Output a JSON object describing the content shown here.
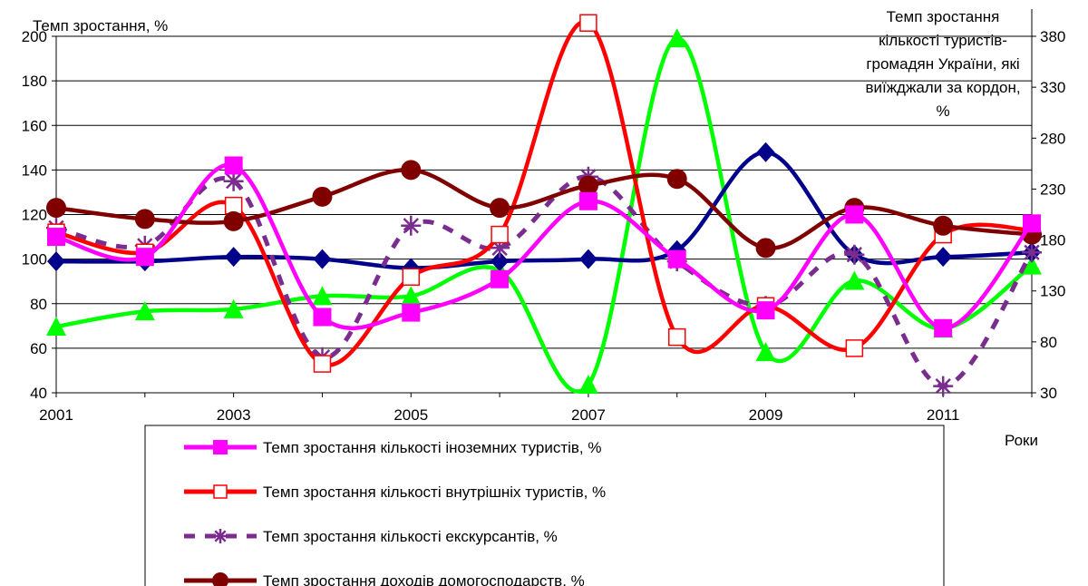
{
  "chart_data": {
    "type": "line",
    "y_label": "Темп зростання, %",
    "y2_label_lines": [
      "Темп зростання",
      "кількості туристів-",
      "громадян України, які",
      "виїжджали за кордон,",
      "%"
    ],
    "x_label": "Роки",
    "x": [
      2001,
      2002,
      2003,
      2004,
      2005,
      2006,
      2007,
      2008,
      2009,
      2010,
      2011,
      2012
    ],
    "x_tick_labels": [
      "2001",
      "2003",
      "2005",
      "2007",
      "2009",
      "2011"
    ],
    "x_tick_values": [
      2001,
      2003,
      2005,
      2007,
      2009,
      2011
    ],
    "y_ticks": [
      "40",
      "60",
      "80",
      "100",
      "120",
      "140",
      "160",
      "180",
      "200"
    ],
    "y_tick_values": [
      40,
      60,
      80,
      100,
      120,
      140,
      160,
      180,
      200
    ],
    "ylim": [
      40,
      200
    ],
    "y2_ticks": [
      "30",
      "80",
      "130",
      "180",
      "230",
      "280",
      "330",
      "380"
    ],
    "y2_tick_values": [
      30,
      80,
      130,
      180,
      230,
      280,
      330,
      380
    ],
    "y2lim": [
      30,
      380
    ],
    "grid": "horizontal",
    "legend_position": "bottom",
    "series": [
      {
        "name": "Темп зростання кількості іноземних туристів, %",
        "color": "#ff00ff",
        "marker": "square-filled",
        "dash": false,
        "axis": "left",
        "values": [
          110,
          101,
          142,
          74,
          76,
          91,
          126,
          100,
          77,
          120,
          69,
          116
        ]
      },
      {
        "name": "Темп зростання кількості внутрішніх туристів, %",
        "color": "#ff0000",
        "marker": "square-open",
        "dash": false,
        "axis": "left",
        "values": [
          112,
          103,
          124,
          53,
          92,
          111,
          206,
          65,
          79,
          60,
          111,
          113
        ]
      },
      {
        "name": "Темп зростання кількості екскурсантів, %",
        "color": "#7b2d8f",
        "marker": "star",
        "dash": true,
        "axis": "left",
        "values": [
          114,
          106,
          135,
          56,
          115,
          105,
          137,
          99,
          79,
          102,
          43,
          103
        ]
      },
      {
        "name": "Темп зростання доходів домогосподарств, %",
        "color": "#800000",
        "marker": "circle",
        "dash": false,
        "axis": "left",
        "values": [
          123,
          118,
          117,
          128,
          140,
          123,
          133,
          136,
          105,
          123,
          115,
          111
        ]
      },
      {
        "color": "#00008b",
        "marker": "diamond",
        "dash": false,
        "axis": "left",
        "legend": false,
        "values": [
          99,
          99,
          101,
          100,
          96,
          99,
          100,
          104,
          148,
          102,
          101,
          103
        ]
      },
      {
        "color": "#00ff00",
        "marker": "triangle",
        "dash": false,
        "axis": "right",
        "legend": false,
        "values": [
          95,
          110,
          112,
          125,
          125,
          150,
          38,
          378,
          70,
          140,
          93,
          155
        ]
      }
    ]
  }
}
